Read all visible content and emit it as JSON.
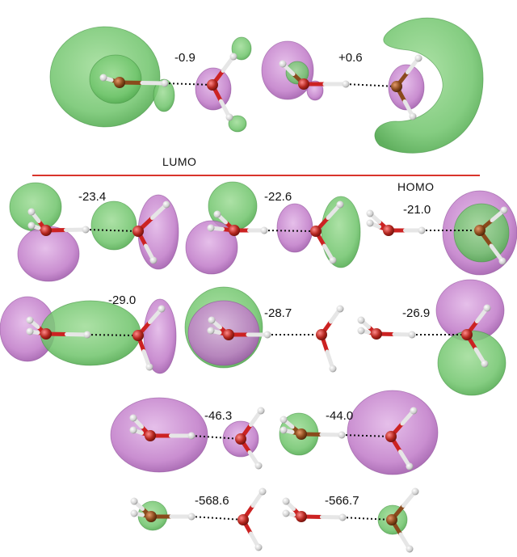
{
  "separator": {
    "lumo_label": "LUMO",
    "homo_label": "HOMO",
    "color": "#d9342b"
  },
  "colors": {
    "positive_lobe": "#6fc46b",
    "negative_lobe": "#c07ac8",
    "oxygen": "#c0392b",
    "hydrogen": "#d9d9d9",
    "bond": "#cc2222",
    "hbond": "#111111"
  },
  "panels": [
    {
      "id": "p1",
      "energy": "-0.9"
    },
    {
      "id": "p2",
      "energy": "+0.6"
    },
    {
      "id": "p3",
      "energy": "-23.4"
    },
    {
      "id": "p4",
      "energy": "-22.6"
    },
    {
      "id": "p5",
      "energy": "-21.0"
    },
    {
      "id": "p6",
      "energy": "-29.0"
    },
    {
      "id": "p7",
      "energy": "-28.7"
    },
    {
      "id": "p8",
      "energy": "-26.9"
    },
    {
      "id": "p9",
      "energy": "-46.3"
    },
    {
      "id": "p10",
      "energy": "-44.0"
    },
    {
      "id": "p11",
      "energy": "-568.6"
    },
    {
      "id": "p12",
      "energy": "-566.7"
    }
  ]
}
